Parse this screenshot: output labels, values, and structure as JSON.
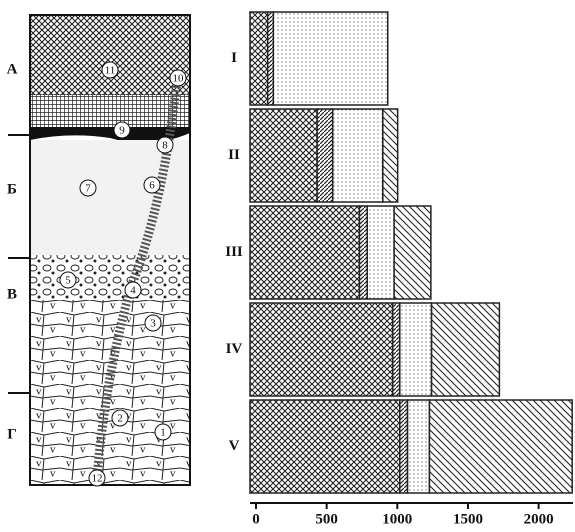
{
  "profile": {
    "horizons": [
      "А",
      "Б",
      "В",
      "Г"
    ],
    "markers": [
      "1",
      "2",
      "3",
      "4",
      "5",
      "6",
      "7",
      "8",
      "9",
      "10",
      "11",
      "12"
    ]
  },
  "chart_data": {
    "type": "stacked-bar",
    "orientation": "horizontal",
    "categories": [
      "I",
      "II",
      "III",
      "IV",
      "V"
    ],
    "series": [
      {
        "pattern": "crosshatch",
        "color": "#222",
        "values": [
          125,
          475,
          775,
          1010,
          1060
        ]
      },
      {
        "pattern": "hatch",
        "color": "#222",
        "values": [
          40,
          110,
          55,
          50,
          55
        ]
      },
      {
        "pattern": "dots",
        "color": "#222",
        "values": [
          810,
          355,
          190,
          225,
          155
        ]
      },
      {
        "pattern": "diagonal",
        "color": "#222",
        "values": [
          0,
          105,
          260,
          480,
          1010
        ]
      }
    ],
    "xlim": [
      0,
      2300
    ],
    "xticks": [
      0,
      500,
      1000,
      1500,
      2000
    ]
  }
}
